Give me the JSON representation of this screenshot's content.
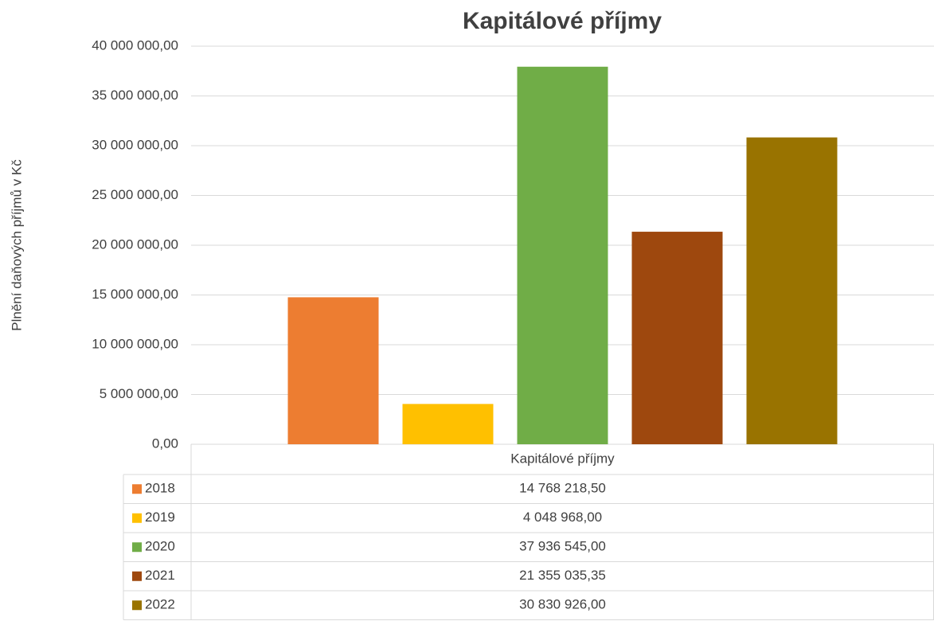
{
  "chart_data": {
    "type": "bar",
    "title": "Kapitálové příjmy",
    "y_label": "Plnění daňových příjmů v Kč",
    "categories": [
      "Kapitálové příjmy"
    ],
    "series": [
      {
        "name": "2018",
        "color": "#ED7D31",
        "values": [
          14768218.5
        ],
        "value_labels": [
          "14 768 218,50"
        ]
      },
      {
        "name": "2019",
        "color": "#FFC000",
        "values": [
          4048968
        ],
        "value_labels": [
          "4 048 968,00"
        ]
      },
      {
        "name": "2020",
        "color": "#70AD47",
        "values": [
          37936545
        ],
        "value_labels": [
          "37 936 545,00"
        ]
      },
      {
        "name": "2021",
        "color": "#9E480E",
        "values": [
          21355035.35
        ],
        "value_labels": [
          "21 355 035,35"
        ]
      },
      {
        "name": "2022",
        "color": "#997300",
        "values": [
          30830926
        ],
        "value_labels": [
          "30 830 926,00"
        ]
      }
    ],
    "ylim": [
      0,
      40000000
    ],
    "yticks": [
      {
        "value": 0,
        "label": "0,00"
      },
      {
        "value": 5000000,
        "label": "5 000 000,00"
      },
      {
        "value": 10000000,
        "label": "10 000 000,00"
      },
      {
        "value": 15000000,
        "label": "15 000 000,00"
      },
      {
        "value": 20000000,
        "label": "20 000 000,00"
      },
      {
        "value": 25000000,
        "label": "25 000 000,00"
      },
      {
        "value": 30000000,
        "label": "30 000 000,00"
      },
      {
        "value": 35000000,
        "label": "35 000 000,00"
      },
      {
        "value": 40000000,
        "label": "40 000 000,00"
      }
    ],
    "grid": true
  }
}
